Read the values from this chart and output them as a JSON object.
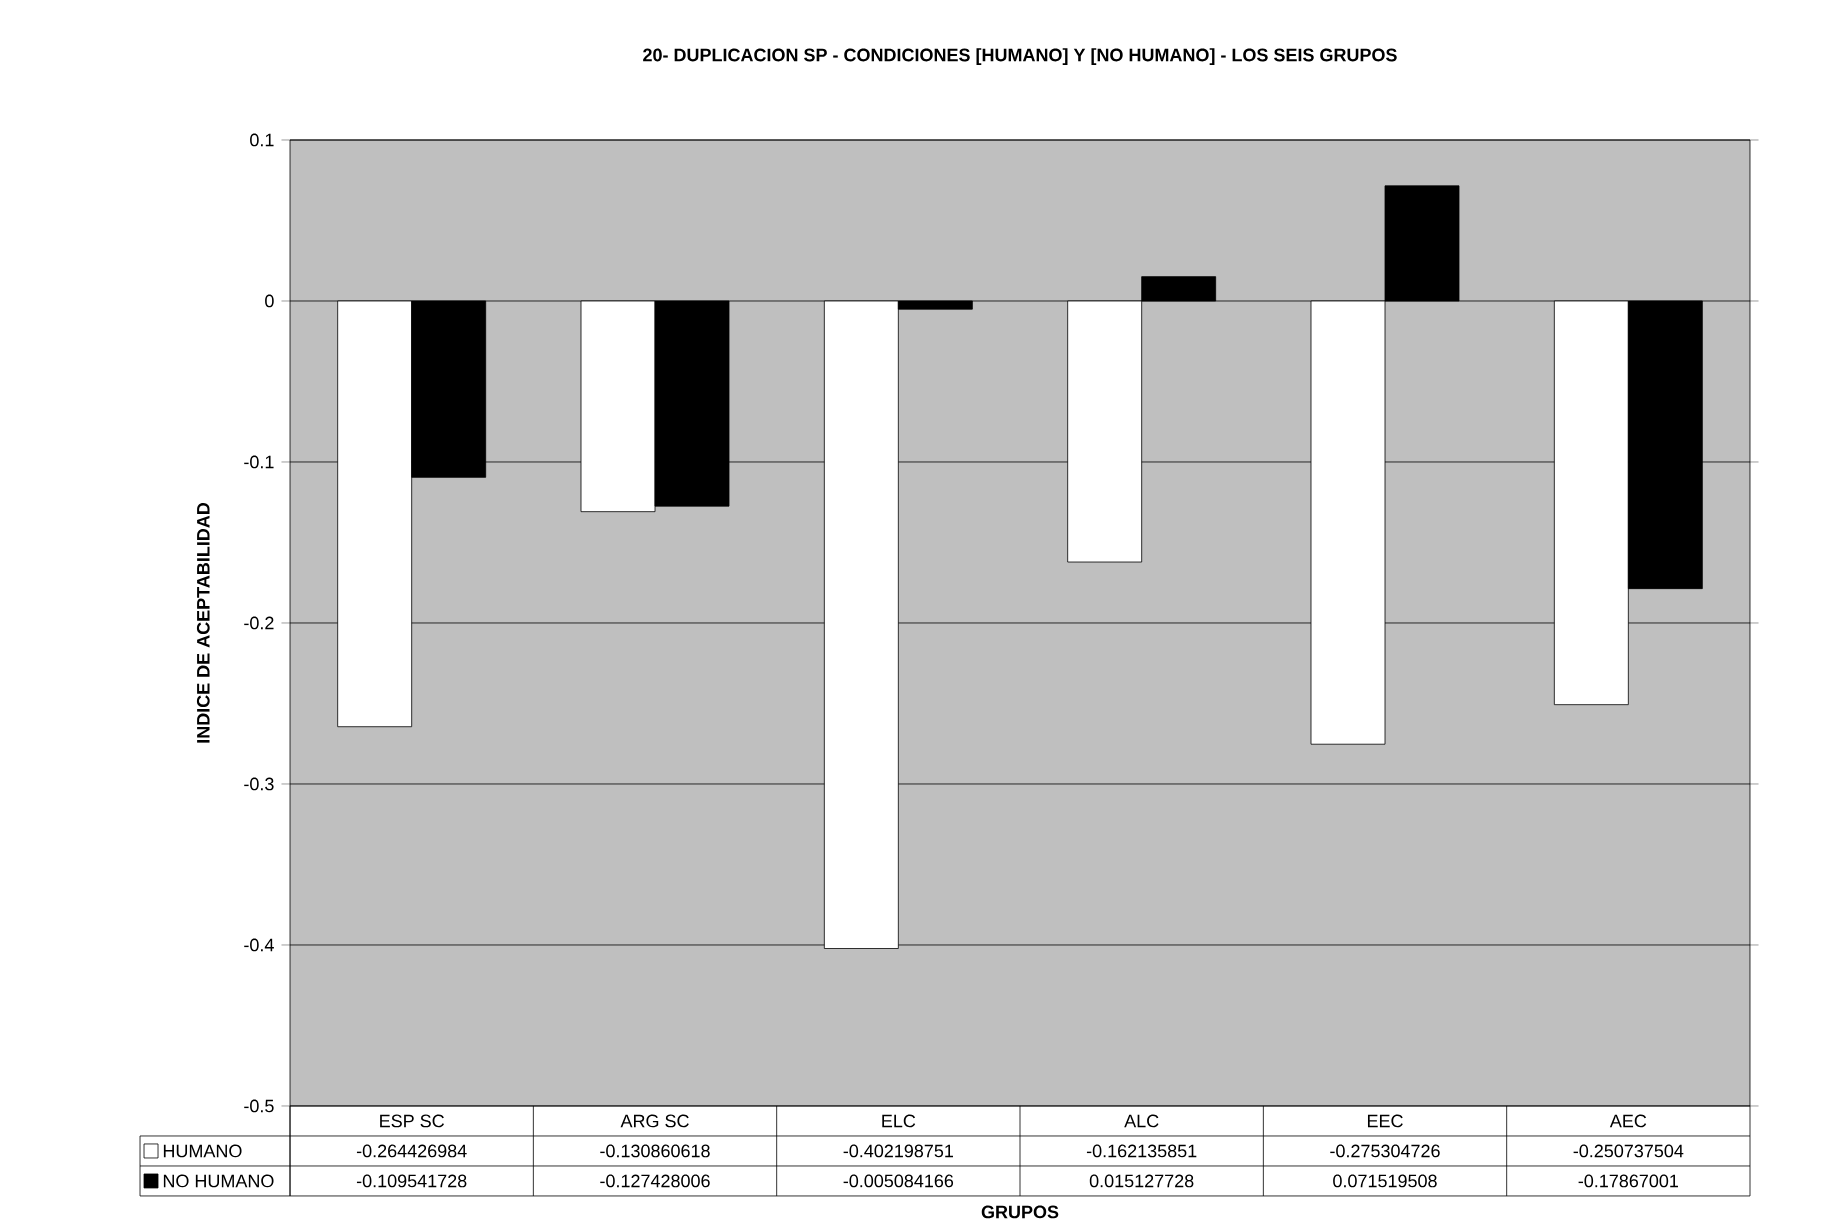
{
  "chart_data": {
    "type": "bar",
    "title": "20- DUPLICACION SP - CONDICIONES [HUMANO] Y [NO HUMANO] - LOS SEIS GRUPOS",
    "xlabel": "GRUPOS",
    "ylabel": "INDICE DE ACEPTABILIDAD",
    "categories": [
      "ESP SC",
      "ARG SC",
      "ELC",
      "ALC",
      "EEC",
      "AEC"
    ],
    "series": [
      {
        "name": "HUMANO",
        "color": "#ffffff",
        "values": [
          -0.264426984,
          -0.130860618,
          -0.402198751,
          -0.162135851,
          -0.275304726,
          -0.250737504
        ]
      },
      {
        "name": "NO HUMANO",
        "color": "#000000",
        "values": [
          -0.109541728,
          -0.127428006,
          -0.005084166,
          0.015127728,
          0.071519508,
          -0.17867001
        ]
      }
    ],
    "ylim": [
      -0.5,
      0.1
    ],
    "yticks": [
      -0.5,
      -0.4,
      -0.3,
      -0.2,
      -0.1,
      0,
      0.1
    ],
    "grid": "y",
    "legend": "bottom",
    "data_labels": true
  }
}
